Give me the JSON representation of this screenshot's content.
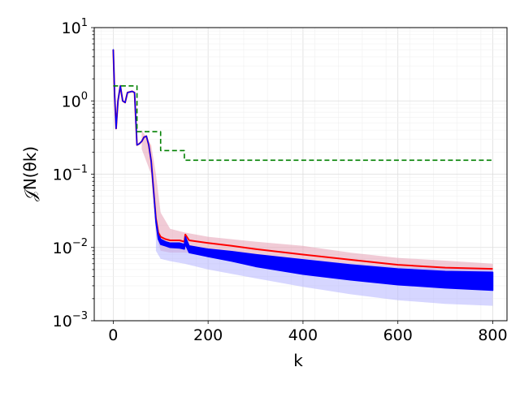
{
  "chart_data": {
    "type": "line",
    "title": "",
    "xlabel": "k",
    "ylabel": "𝒥N(θk)",
    "xlim": [
      -40,
      830
    ],
    "ylim": [
      0.001,
      10
    ],
    "yscale": "log",
    "grid": true,
    "x_ticks": [
      0,
      200,
      400,
      600,
      800
    ],
    "x_tick_labels": [
      "0",
      "200",
      "400",
      "600",
      "800"
    ],
    "y_ticks": [
      {
        "value": 0.001,
        "base": "10",
        "exp": "−3"
      },
      {
        "value": 0.01,
        "base": "10",
        "exp": "−2"
      },
      {
        "value": 0.1,
        "base": "10",
        "exp": "−1"
      },
      {
        "value": 1,
        "base": "10",
        "exp": "0"
      },
      {
        "value": 10,
        "base": "10",
        "exp": "1"
      }
    ],
    "colors": {
      "red_series": "#ff0000",
      "blue_series": "#0000ff",
      "green_series": "#008000",
      "red_band": "#e6a0b4",
      "blue_band": "#b4b4ff"
    },
    "series": [
      {
        "style": "solid",
        "color": "#ff0000",
        "x": [
          0,
          3,
          6,
          10,
          15,
          20,
          25,
          30,
          40,
          45,
          50,
          55,
          60,
          65,
          70,
          75,
          80,
          85,
          90,
          95,
          100,
          110,
          120,
          140,
          150,
          152,
          160,
          200,
          250,
          300,
          400,
          500,
          600,
          700,
          800
        ],
        "y": [
          5.0,
          1.2,
          0.42,
          1.0,
          1.6,
          1.0,
          0.95,
          1.3,
          1.35,
          1.3,
          0.25,
          0.26,
          0.28,
          0.32,
          0.33,
          0.25,
          0.15,
          0.06,
          0.025,
          0.016,
          0.014,
          0.013,
          0.0125,
          0.0125,
          0.012,
          0.015,
          0.0125,
          0.0115,
          0.0105,
          0.0095,
          0.008,
          0.0068,
          0.0058,
          0.0053,
          0.0051
        ]
      },
      {
        "style": "solid",
        "color": "#0000ff",
        "x": [
          0,
          3,
          6,
          10,
          15,
          20,
          25,
          30,
          40,
          45,
          50,
          55,
          60,
          65,
          70,
          75,
          80,
          85,
          90,
          95,
          100,
          110,
          120,
          140,
          150,
          152,
          160,
          200,
          250,
          300,
          400,
          500,
          600,
          700,
          800
        ],
        "y_upper": [
          5.0,
          1.2,
          0.42,
          1.0,
          1.6,
          1.0,
          0.95,
          1.3,
          1.35,
          1.3,
          0.25,
          0.26,
          0.28,
          0.32,
          0.33,
          0.25,
          0.15,
          0.06,
          0.024,
          0.015,
          0.013,
          0.012,
          0.0115,
          0.0115,
          0.011,
          0.014,
          0.0105,
          0.0095,
          0.0088,
          0.008,
          0.0068,
          0.0058,
          0.0051,
          0.0047,
          0.0046
        ],
        "y_lower": [
          5.0,
          1.2,
          0.42,
          1.0,
          1.6,
          1.0,
          0.95,
          1.3,
          1.35,
          1.3,
          0.25,
          0.26,
          0.28,
          0.32,
          0.33,
          0.25,
          0.15,
          0.06,
          0.022,
          0.013,
          0.011,
          0.0105,
          0.01,
          0.0098,
          0.0095,
          0.011,
          0.0085,
          0.0075,
          0.0065,
          0.0055,
          0.0043,
          0.0036,
          0.0031,
          0.0028,
          0.0026
        ]
      },
      {
        "style": "dashed",
        "color": "#008000",
        "x": [
          0,
          50,
          50,
          100,
          100,
          150,
          150,
          800
        ],
        "y": [
          1.6,
          1.6,
          0.38,
          0.38,
          0.21,
          0.21,
          0.155,
          0.155
        ]
      }
    ],
    "bands": [
      {
        "color": "#e6a0b4",
        "x": [
          60,
          80,
          90,
          100,
          120,
          150,
          200,
          300,
          400,
          500,
          600,
          700,
          800
        ],
        "upper": [
          0.4,
          0.25,
          0.1,
          0.03,
          0.018,
          0.016,
          0.014,
          0.012,
          0.0105,
          0.0085,
          0.0072,
          0.0066,
          0.006
        ],
        "lower": [
          0.22,
          0.1,
          0.015,
          0.009,
          0.0085,
          0.0085,
          0.008,
          0.0072,
          0.0062,
          0.0054,
          0.0048,
          0.0046,
          0.0045
        ]
      },
      {
        "color": "#b4b4ff",
        "x": [
          90,
          100,
          120,
          150,
          200,
          300,
          400,
          500,
          600,
          700,
          800
        ],
        "upper": [
          0.02,
          0.012,
          0.011,
          0.01,
          0.009,
          0.008,
          0.007,
          0.006,
          0.0054,
          0.0052,
          0.0051
        ],
        "lower": [
          0.009,
          0.007,
          0.0065,
          0.006,
          0.005,
          0.0038,
          0.0029,
          0.0023,
          0.0019,
          0.0017,
          0.0016
        ]
      }
    ]
  }
}
